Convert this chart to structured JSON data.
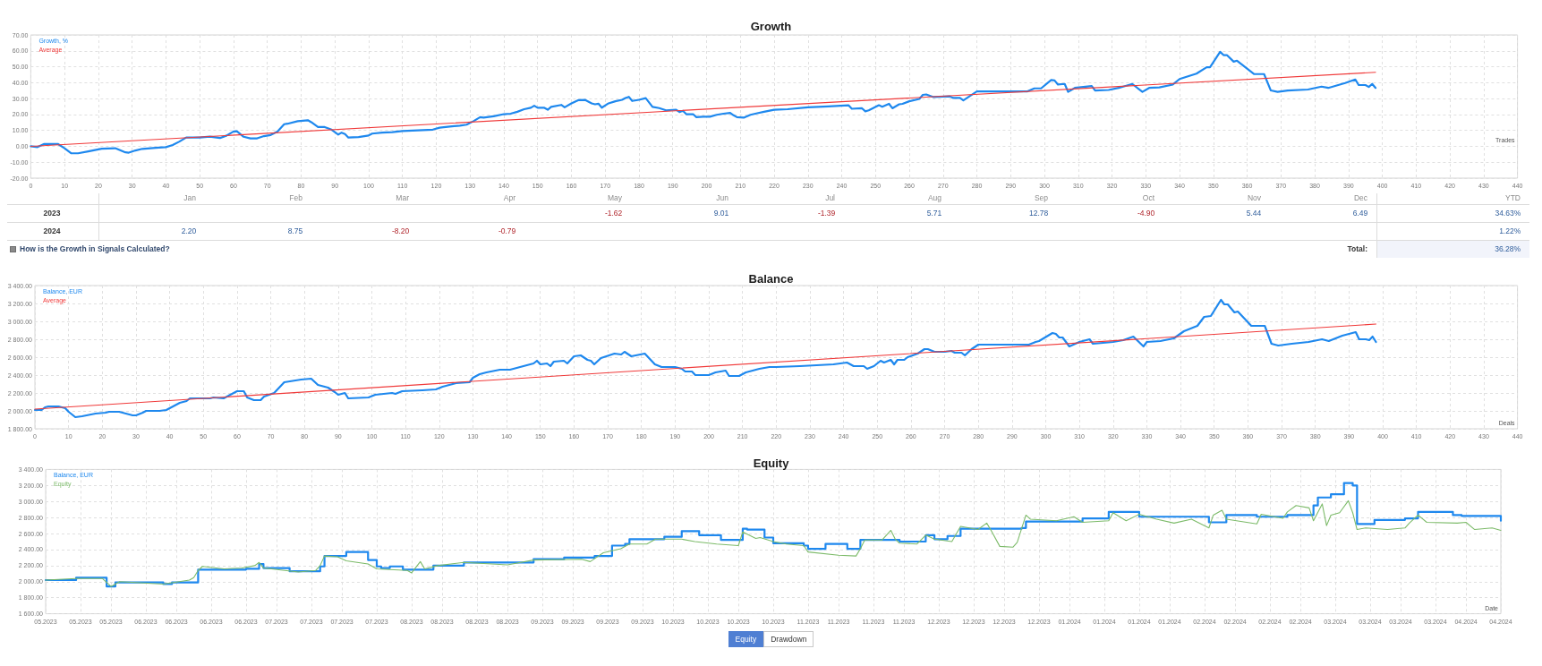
{
  "chart_data": [
    {
      "type": "line",
      "title": "Growth",
      "xlabel": "Trades",
      "series": [
        {
          "name": "Growth, %",
          "color": "#1e88ee",
          "x": [
            0,
            2,
            4,
            8,
            10,
            12,
            14,
            17,
            21,
            25,
            28,
            29,
            31,
            33,
            37,
            40,
            42,
            44,
            46,
            50,
            53,
            56,
            58,
            60,
            61,
            63,
            65,
            67,
            69,
            71,
            73,
            75,
            76,
            79,
            82,
            83,
            85,
            87,
            89,
            91,
            92,
            93,
            94,
            97,
            100,
            101,
            104,
            107,
            110,
            113,
            116,
            119,
            121,
            124,
            127,
            129,
            131,
            133,
            134,
            137,
            140,
            142,
            144,
            146,
            148,
            149,
            150,
            152,
            153,
            154,
            157,
            158,
            160,
            162,
            164,
            166,
            167,
            168,
            169,
            171,
            173,
            175,
            176,
            177,
            178,
            180,
            182,
            184,
            186,
            188,
            190,
            191,
            192,
            193,
            194,
            196,
            197,
            199,
            201,
            203,
            205,
            207,
            208,
            209,
            211,
            213,
            215,
            217,
            220,
            224,
            230,
            236,
            242,
            243,
            246,
            247,
            248,
            251,
            252,
            254,
            255,
            257,
            258,
            260,
            263,
            264,
            265,
            267,
            272,
            273,
            275,
            276,
            280,
            289,
            295,
            297,
            299,
            302,
            303,
            304,
            306,
            307,
            309,
            314,
            315,
            319,
            322,
            326,
            329,
            331,
            334,
            338,
            340,
            345,
            348,
            349,
            352,
            353,
            354,
            356,
            357,
            362,
            365,
            367,
            369,
            372,
            378,
            382,
            384,
            389,
            392,
            393,
            395,
            396,
            397,
            398
          ],
          "values": [
            0,
            -0.5,
            1.5,
            1.5,
            -1.2,
            -4.4,
            -4.4,
            -3.2,
            -1.5,
            -1.2,
            -3.8,
            -4,
            -2.6,
            -1.6,
            -1,
            -0.5,
            0.8,
            3,
            5.5,
            5.5,
            6.1,
            5.2,
            6.8,
            9.3,
            9.5,
            6,
            5,
            5,
            6.4,
            7.1,
            9.3,
            13.9,
            14.2,
            15.8,
            16.4,
            15.2,
            12.1,
            12.1,
            10.5,
            7.4,
            8.6,
            7.7,
            5.5,
            5.8,
            6.8,
            8,
            8.6,
            8.9,
            9.6,
            9.9,
            10.2,
            10.5,
            11.7,
            12.4,
            13,
            13.6,
            15.8,
            18.3,
            18,
            18.9,
            20.2,
            20.5,
            21.7,
            23.3,
            24.2,
            25.5,
            24.2,
            24.2,
            23,
            24.8,
            26,
            24.5,
            27,
            29,
            29.2,
            27,
            26.4,
            26.8,
            24.3,
            27,
            28.3,
            29.2,
            30.3,
            31.1,
            28.5,
            29.2,
            30.3,
            24.8,
            24,
            22.6,
            22.9,
            23,
            21.5,
            22.3,
            20.2,
            20.2,
            18.3,
            18.6,
            18.6,
            19.8,
            20.5,
            21,
            19.5,
            18.3,
            18,
            19.8,
            20.8,
            21.7,
            23,
            23.3,
            24.5,
            25.1,
            25.8,
            23.6,
            23.9,
            22,
            22.6,
            25.8,
            24.8,
            26.7,
            23.9,
            26.4,
            26.7,
            28.3,
            29.8,
            32.3,
            32.6,
            31,
            31.4,
            30.4,
            30.4,
            28.9,
            34.5,
            34.5,
            34.5,
            36.4,
            36.4,
            41.7,
            41.4,
            38.8,
            39.2,
            34.2,
            36.7,
            37.9,
            35.1,
            35.4,
            36.7,
            39.2,
            34.2,
            36.7,
            37,
            38.8,
            42.3,
            45.7,
            49.7,
            49.7,
            59.4,
            57.3,
            57.3,
            53.2,
            53.8,
            45.4,
            45.4,
            35.1,
            34.2,
            35.1,
            35.7,
            37.5,
            36.7,
            39.8,
            42,
            38.5,
            38.5,
            37.3,
            39.2,
            36.7
          ]
        },
        {
          "name": "Average",
          "color": "#f03a3a",
          "x": [
            0,
            398
          ],
          "values": [
            0,
            46.5
          ]
        }
      ],
      "xlim": [
        0,
        440
      ],
      "xticks": [
        0,
        10,
        20,
        30,
        40,
        50,
        60,
        70,
        80,
        90,
        100,
        110,
        120,
        130,
        140,
        150,
        160,
        170,
        180,
        190,
        200,
        210,
        220,
        230,
        240,
        250,
        260,
        270,
        280,
        290,
        300,
        310,
        320,
        330,
        340,
        350,
        360,
        370,
        380,
        390,
        400,
        410,
        420,
        430,
        440
      ],
      "ylim": [
        -20,
        70
      ],
      "yticks": [
        {
          "value": -20,
          "label": "-20.00"
        },
        {
          "value": -10,
          "label": "-10.00"
        },
        {
          "value": 0,
          "label": "0.00"
        },
        {
          "value": 10,
          "label": "10.00"
        },
        {
          "value": 20,
          "label": "20.00"
        },
        {
          "value": 30,
          "label": "30.00"
        },
        {
          "value": 40,
          "label": "40.00"
        },
        {
          "value": 50,
          "label": "50.00"
        },
        {
          "value": 60,
          "label": "60.00"
        },
        {
          "value": 70,
          "label": "70.00"
        }
      ],
      "grid": true,
      "legend": "top left",
      "marker": "none"
    },
    {
      "type": "heatmap",
      "categories": [
        "Jan",
        "Feb",
        "Mar",
        "Apr",
        "May",
        "Jun",
        "Jul",
        "Aug",
        "Sep",
        "Oct",
        "Nov",
        "Dec",
        "YTD"
      ],
      "y_categories": [
        "2023",
        "2024"
      ],
      "cells": [
        [
          null,
          null,
          null,
          null,
          -1.62,
          9.01,
          -1.39,
          5.71,
          12.78,
          -4.9,
          5.44,
          6.49,
          34.63
        ],
        [
          2.2,
          8.75,
          -8.2,
          -0.79,
          null,
          null,
          null,
          null,
          null,
          null,
          null,
          null,
          1.22
        ]
      ],
      "cell_labels": [
        [
          null,
          null,
          null,
          null,
          "-1.62",
          "9.01",
          "-1.39",
          "5.71",
          "12.78",
          "-4.90",
          "5.44",
          "6.49",
          "34.63%"
        ],
        [
          "2.20",
          "8.75",
          "-8.20",
          "-0.79",
          null,
          null,
          null,
          null,
          null,
          null,
          null,
          null,
          "1.22%"
        ]
      ],
      "annotations": [
        "Total:",
        "36.28%",
        "How is the Growth in Signals Calculated?"
      ]
    },
    {
      "type": "line",
      "title": "Balance",
      "xlabel": "Deals",
      "series": [
        {
          "name": "Balance, EUR",
          "color": "#1e88ee",
          "x": [
            0,
            2,
            3,
            4,
            7,
            9,
            10,
            12,
            14,
            18,
            21,
            22,
            25,
            29,
            30,
            32,
            33,
            37,
            39,
            40,
            43,
            45,
            46,
            52,
            53,
            56,
            60,
            62,
            63,
            65,
            67,
            68,
            71,
            74,
            79,
            82,
            84,
            87,
            89,
            90,
            92,
            93,
            99,
            101,
            106,
            107,
            109,
            115,
            119,
            121,
            125,
            129,
            130,
            132,
            134,
            138,
            141,
            146,
            148,
            149,
            150,
            152,
            153,
            154,
            157,
            158,
            160,
            162,
            164,
            165,
            166,
            168,
            172,
            174,
            175,
            177,
            181,
            184,
            186,
            190,
            192,
            193,
            195,
            196,
            200,
            202,
            205,
            206,
            209,
            211,
            215,
            218,
            220,
            227,
            237,
            241,
            243,
            246,
            247,
            249,
            251,
            252,
            254,
            255,
            256,
            258,
            259,
            262,
            264,
            265,
            267,
            270,
            272,
            273,
            275,
            276,
            278,
            280,
            284,
            289,
            295,
            297,
            298,
            302,
            303,
            304,
            305,
            307,
            310,
            313,
            314,
            320,
            323,
            326,
            329,
            330,
            334,
            338,
            341,
            345,
            347,
            349,
            352,
            353,
            354,
            356,
            357,
            361,
            365,
            367,
            369,
            373,
            378,
            382,
            384,
            388,
            392,
            393,
            395,
            396,
            397,
            398
          ],
          "values": [
            2010,
            2010,
            2040,
            2050,
            2050,
            2030,
            1990,
            1930,
            1940,
            1970,
            1980,
            1990,
            1990,
            1950,
            1950,
            1980,
            2000,
            2000,
            2010,
            2030,
            2090,
            2110,
            2140,
            2140,
            2150,
            2140,
            2220,
            2220,
            2150,
            2120,
            2120,
            2160,
            2200,
            2320,
            2350,
            2360,
            2290,
            2260,
            2210,
            2180,
            2200,
            2140,
            2150,
            2180,
            2200,
            2190,
            2220,
            2230,
            2240,
            2270,
            2310,
            2320,
            2370,
            2410,
            2430,
            2460,
            2460,
            2510,
            2530,
            2560,
            2520,
            2530,
            2500,
            2550,
            2560,
            2530,
            2610,
            2620,
            2570,
            2560,
            2520,
            2590,
            2640,
            2630,
            2660,
            2610,
            2640,
            2520,
            2490,
            2490,
            2470,
            2440,
            2440,
            2400,
            2400,
            2430,
            2450,
            2390,
            2390,
            2430,
            2470,
            2490,
            2490,
            2500,
            2520,
            2540,
            2500,
            2500,
            2470,
            2500,
            2560,
            2540,
            2570,
            2520,
            2570,
            2570,
            2600,
            2640,
            2690,
            2690,
            2660,
            2660,
            2670,
            2650,
            2650,
            2620,
            2690,
            2740,
            2740,
            2740,
            2740,
            2770,
            2780,
            2870,
            2860,
            2820,
            2820,
            2720,
            2770,
            2800,
            2750,
            2770,
            2790,
            2830,
            2720,
            2770,
            2780,
            2810,
            2890,
            2950,
            3050,
            3060,
            3240,
            3190,
            3190,
            3100,
            3110,
            2950,
            2950,
            2750,
            2730,
            2750,
            2770,
            2800,
            2780,
            2840,
            2880,
            2800,
            2800,
            2790,
            2830,
            2770
          ]
        },
        {
          "name": "Average",
          "color": "#f03a3a",
          "x": [
            0,
            398
          ],
          "values": [
            2020,
            2970
          ]
        }
      ],
      "xlim": [
        0,
        440
      ],
      "xticks": [
        0,
        10,
        20,
        30,
        40,
        50,
        60,
        70,
        80,
        90,
        100,
        110,
        120,
        130,
        140,
        150,
        160,
        170,
        180,
        190,
        200,
        210,
        220,
        230,
        240,
        250,
        260,
        270,
        280,
        290,
        300,
        310,
        320,
        330,
        340,
        350,
        360,
        370,
        380,
        390,
        400,
        410,
        420,
        430,
        440
      ],
      "ylim": [
        1800,
        3400
      ],
      "yticks": [
        {
          "value": 1800,
          "label": "1 800.00"
        },
        {
          "value": 2000,
          "label": "2 000.00"
        },
        {
          "value": 2200,
          "label": "2 200.00"
        },
        {
          "value": 2400,
          "label": "2 400.00"
        },
        {
          "value": 2600,
          "label": "2 600.00"
        },
        {
          "value": 2800,
          "label": "2 800.00"
        },
        {
          "value": 3000,
          "label": "3 000.00"
        },
        {
          "value": 3200,
          "label": "3 200.00"
        },
        {
          "value": 3400,
          "label": "3 400.00"
        }
      ],
      "grid": true,
      "legend": "top left",
      "marker": "none"
    },
    {
      "type": "line",
      "title": "Equity",
      "xlabel": "Date",
      "series": [
        {
          "name": "Balance, EUR",
          "type": "step",
          "color": "#1e88ee",
          "x": [
            "2023-05-12",
            "2023-05-19",
            "2023-05-26",
            "2023-05-28",
            "2023-06-08",
            "2023-06-10",
            "2023-06-16",
            "2023-06-27",
            "2023-06-30",
            "2023-07-01",
            "2023-07-07",
            "2023-07-14",
            "2023-07-15",
            "2023-07-20",
            "2023-07-25",
            "2023-07-27",
            "2023-07-28",
            "2023-07-30",
            "2023-08-02",
            "2023-08-09",
            "2023-08-16",
            "2023-09-01",
            "2023-09-08",
            "2023-09-15",
            "2023-09-19",
            "2023-09-22",
            "2023-09-23",
            "2023-10-01",
            "2023-10-05",
            "2023-10-09",
            "2023-10-14",
            "2023-10-19",
            "2023-10-20",
            "2023-10-24",
            "2023-10-26",
            "2023-11-02",
            "2023-11-03",
            "2023-11-07",
            "2023-11-12",
            "2023-11-15",
            "2023-11-24",
            "2023-11-30",
            "2023-12-02",
            "2023-12-05",
            "2023-12-08",
            "2023-12-22",
            "2023-12-23",
            "2024-01-05",
            "2024-01-11",
            "2024-01-18",
            "2024-02-03",
            "2024-02-07",
            "2024-02-14",
            "2024-02-21",
            "2024-02-27",
            "2024-02-28",
            "2024-03-02",
            "2024-03-05",
            "2024-03-07",
            "2024-03-08",
            "2024-03-12",
            "2024-03-19",
            "2024-03-22",
            "2024-03-30",
            "2024-04-01",
            "2024-04-10"
          ],
          "values": [
            2020,
            2050,
            1940,
            1990,
            1970,
            1990,
            2150,
            2160,
            2220,
            2170,
            2130,
            2190,
            2320,
            2370,
            2270,
            2190,
            2170,
            2190,
            2150,
            2200,
            2240,
            2280,
            2300,
            2320,
            2450,
            2470,
            2530,
            2560,
            2630,
            2580,
            2520,
            2660,
            2650,
            2550,
            2480,
            2450,
            2410,
            2470,
            2410,
            2520,
            2500,
            2580,
            2530,
            2570,
            2660,
            2670,
            2750,
            2790,
            2870,
            2810,
            2740,
            2830,
            2810,
            2830,
            2950,
            3050,
            3090,
            3230,
            3200,
            2720,
            2770,
            2790,
            2870,
            2830,
            2820,
            2760
          ]
        },
        {
          "name": "Equity",
          "color": "#7dbb6a",
          "x": [
            "2023-05-12",
            "2023-05-19",
            "2023-05-25",
            "2023-05-27",
            "2023-05-29",
            "2023-06-08",
            "2023-06-14",
            "2023-06-15",
            "2023-06-16",
            "2023-06-17",
            "2023-06-22",
            "2023-06-26",
            "2023-06-29",
            "2023-06-30",
            "2023-07-01",
            "2023-07-09",
            "2023-07-13",
            "2023-07-14",
            "2023-07-15",
            "2023-07-18",
            "2023-07-20",
            "2023-07-25",
            "2023-07-27",
            "2023-08-03",
            "2023-08-04",
            "2023-08-06",
            "2023-08-07",
            "2023-08-10",
            "2023-08-16",
            "2023-08-26",
            "2023-09-01",
            "2023-09-12",
            "2023-09-14",
            "2023-09-17",
            "2023-09-21",
            "2023-09-23",
            "2023-09-27",
            "2023-09-29",
            "2023-10-05",
            "2023-10-08",
            "2023-10-13",
            "2023-10-18",
            "2023-10-19",
            "2023-10-22",
            "2023-10-23",
            "2023-10-26",
            "2023-10-29",
            "2023-11-02",
            "2023-11-03",
            "2023-11-10",
            "2023-11-14",
            "2023-11-15",
            "2023-11-16",
            "2023-11-20",
            "2023-11-22",
            "2023-11-23",
            "2023-11-24",
            "2023-11-28",
            "2023-11-30",
            "2023-12-02",
            "2023-12-06",
            "2023-12-08",
            "2023-12-12",
            "2023-12-14",
            "2023-12-15",
            "2023-12-17",
            "2023-12-20",
            "2023-12-21",
            "2023-12-23",
            "2023-12-24",
            "2023-12-30",
            "2024-01-03",
            "2024-01-05",
            "2024-01-11",
            "2024-01-12",
            "2024-01-15",
            "2024-01-18",
            "2024-01-22",
            "2024-01-26",
            "2024-01-30",
            "2024-02-03",
            "2024-02-04",
            "2024-02-06",
            "2024-02-07",
            "2024-02-14",
            "2024-02-15",
            "2024-02-20",
            "2024-02-21",
            "2024-02-23",
            "2024-02-26",
            "2024-02-27",
            "2024-02-29",
            "2024-03-01",
            "2024-03-02",
            "2024-03-04",
            "2024-03-06",
            "2024-03-07",
            "2024-03-08",
            "2024-03-10",
            "2024-03-15",
            "2024-03-19",
            "2024-03-20",
            "2024-03-22",
            "2024-03-24",
            "2024-03-31",
            "2024-04-02",
            "2024-04-04",
            "2024-04-08",
            "2024-04-10"
          ],
          "values": [
            2020,
            2040,
            2040,
            1940,
            2000,
            1970,
            2020,
            2050,
            2140,
            2190,
            2160,
            2170,
            2200,
            2240,
            2170,
            2120,
            2140,
            2200,
            2320,
            2310,
            2260,
            2220,
            2160,
            2140,
            2110,
            2250,
            2160,
            2200,
            2240,
            2210,
            2270,
            2280,
            2250,
            2360,
            2410,
            2470,
            2470,
            2530,
            2530,
            2500,
            2470,
            2450,
            2620,
            2540,
            2550,
            2500,
            2470,
            2450,
            2370,
            2330,
            2320,
            2410,
            2520,
            2520,
            2640,
            2530,
            2480,
            2470,
            2580,
            2530,
            2500,
            2690,
            2650,
            2730,
            2640,
            2440,
            2430,
            2490,
            2830,
            2780,
            2760,
            2810,
            2740,
            2760,
            2860,
            2760,
            2840,
            2780,
            2730,
            2780,
            2670,
            2830,
            2890,
            2780,
            2720,
            2840,
            2790,
            2870,
            2950,
            2920,
            2760,
            2970,
            2700,
            2830,
            2860,
            3010,
            2860,
            2650,
            2670,
            2650,
            2670,
            2730,
            2830,
            2740,
            2730,
            2740,
            2650,
            2670,
            2640
          ]
        }
      ],
      "xlim": [
        "2023-05-12",
        "2024-04-10"
      ],
      "xticks": [
        {
          "value": "2023-05-12",
          "label": "05.2023"
        },
        {
          "value": "2023-05-20",
          "label": "05.2023"
        },
        {
          "value": "2023-05-27",
          "label": "05.2023"
        },
        {
          "value": "2023-06-04",
          "label": "06.2023"
        },
        {
          "value": "2023-06-11",
          "label": "06.2023"
        },
        {
          "value": "2023-06-19",
          "label": "06.2023"
        },
        {
          "value": "2023-06-27",
          "label": "06.2023"
        },
        {
          "value": "2023-07-04",
          "label": "07.2023"
        },
        {
          "value": "2023-07-12",
          "label": "07.2023"
        },
        {
          "value": "2023-07-19",
          "label": "07.2023"
        },
        {
          "value": "2023-07-27",
          "label": "07.2023"
        },
        {
          "value": "2023-08-04",
          "label": "08.2023"
        },
        {
          "value": "2023-08-11",
          "label": "08.2023"
        },
        {
          "value": "2023-08-19",
          "label": "08.2023"
        },
        {
          "value": "2023-08-26",
          "label": "08.2023"
        },
        {
          "value": "2023-09-03",
          "label": "09.2023"
        },
        {
          "value": "2023-09-10",
          "label": "09.2023"
        },
        {
          "value": "2023-09-18",
          "label": "09.2023"
        },
        {
          "value": "2023-09-26",
          "label": "09.2023"
        },
        {
          "value": "2023-10-03",
          "label": "10.2023"
        },
        {
          "value": "2023-10-11",
          "label": "10.2023"
        },
        {
          "value": "2023-10-18",
          "label": "10.2023"
        },
        {
          "value": "2023-10-26",
          "label": "10.2023"
        },
        {
          "value": "2023-11-03",
          "label": "11.2023"
        },
        {
          "value": "2023-11-10",
          "label": "11.2023"
        },
        {
          "value": "2023-11-18",
          "label": "11.2023"
        },
        {
          "value": "2023-11-25",
          "label": "11.2023"
        },
        {
          "value": "2023-12-03",
          "label": "12.2023"
        },
        {
          "value": "2023-12-11",
          "label": "12.2023"
        },
        {
          "value": "2023-12-18",
          "label": "12.2023"
        },
        {
          "value": "2023-12-26",
          "label": "12.2023"
        },
        {
          "value": "2024-01-02",
          "label": "01.2024"
        },
        {
          "value": "2024-01-10",
          "label": "01.2024"
        },
        {
          "value": "2024-01-18",
          "label": "01.2024"
        },
        {
          "value": "2024-01-25",
          "label": "01.2024"
        },
        {
          "value": "2024-02-02",
          "label": "02.2024"
        },
        {
          "value": "2024-02-09",
          "label": "02.2024"
        },
        {
          "value": "2024-02-17",
          "label": "02.2024"
        },
        {
          "value": "2024-02-24",
          "label": "02.2024"
        },
        {
          "value": "2024-03-03",
          "label": "03.2024"
        },
        {
          "value": "2024-03-11",
          "label": "03.2024"
        },
        {
          "value": "2024-03-18",
          "label": "03.2024"
        },
        {
          "value": "2024-03-26",
          "label": "03.2024"
        },
        {
          "value": "2024-04-02",
          "label": "04.2024"
        },
        {
          "value": "2024-04-10",
          "label": "04.2024"
        }
      ],
      "ylim": [
        1600,
        3400
      ],
      "yticks": [
        {
          "value": 1600,
          "label": "1 600.00"
        },
        {
          "value": 1800,
          "label": "1 800.00"
        },
        {
          "value": 2000,
          "label": "2 000.00"
        },
        {
          "value": 2200,
          "label": "2 200.00"
        },
        {
          "value": 2400,
          "label": "2 400.00"
        },
        {
          "value": 2600,
          "label": "2 600.00"
        },
        {
          "value": 2800,
          "label": "2 800.00"
        },
        {
          "value": 3000,
          "label": "3 000.00"
        },
        {
          "value": 3200,
          "label": "3 200.00"
        },
        {
          "value": 3400,
          "label": "3 400.00"
        }
      ],
      "grid": true,
      "legend": "top left",
      "marker": "none",
      "annotations": [
        "Equity",
        "Drawdown"
      ]
    }
  ]
}
